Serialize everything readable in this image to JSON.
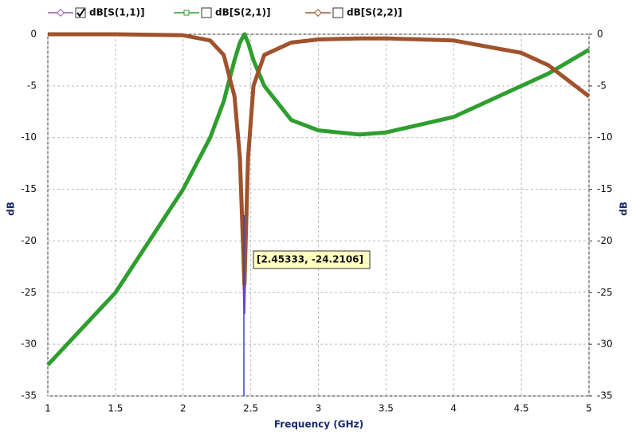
{
  "chart_data": {
    "type": "line",
    "x_label": "Frequency (GHz)",
    "y_label": "dB",
    "y2_label": "dB",
    "x": [
      1,
      1.5,
      2,
      2.2,
      2.3,
      2.38,
      2.42,
      2.45333,
      2.48,
      2.52,
      2.6,
      2.8,
      3,
      3.3,
      3.5,
      4,
      4.5,
      4.7,
      5
    ],
    "series": [
      {
        "name": "dB[S(1,1)]",
        "color": "#9b59b6",
        "checked": true,
        "values": [
          0,
          0,
          -0.1,
          -0.6,
          -2,
          -6,
          -13,
          -27,
          -13,
          -5,
          -2,
          -0.8,
          -0.5,
          -0.4,
          -0.4,
          -0.6,
          -1.8,
          -3,
          -6
        ]
      },
      {
        "name": "dB[S(2,1)]",
        "color": "#2e9e2e",
        "checked": false,
        "values": [
          -32,
          -25,
          -15,
          -10,
          -6.5,
          -2.5,
          -0.8,
          0,
          -0.8,
          -2.5,
          -5,
          -8.3,
          -9.3,
          -9.7,
          -9.5,
          -8,
          -5,
          -3.8,
          -1.5
        ]
      },
      {
        "name": "dB[S(2,2)]",
        "color": "#a0522d",
        "checked": false,
        "values": [
          0,
          0,
          -0.1,
          -0.6,
          -2,
          -6,
          -12,
          -24.2,
          -12,
          -5,
          -2,
          -0.8,
          -0.5,
          -0.4,
          -0.4,
          -0.6,
          -1.8,
          -3,
          -6
        ]
      }
    ],
    "xlim": [
      1,
      5
    ],
    "xticks": [
      1,
      1.5,
      2,
      2.5,
      3,
      3.5,
      4,
      4.5,
      5
    ],
    "ylim": [
      -35,
      0
    ],
    "yticks": [
      0,
      -5,
      -10,
      -15,
      -20,
      -25,
      -30,
      -35
    ],
    "y2lim": [
      -35,
      0
    ],
    "y2ticks": [
      0,
      -5,
      -10,
      -15,
      -20,
      -25,
      -30,
      -35
    ],
    "grid": true,
    "annotation": "[2.45333, -24.2106]"
  }
}
